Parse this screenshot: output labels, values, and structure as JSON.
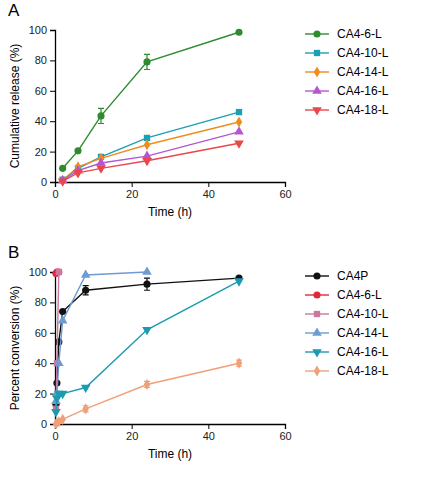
{
  "chart_data": [
    {
      "type": "line",
      "title": "A",
      "x_label": "Time (h)",
      "y_label": "Cumulative release (%)",
      "xlim": [
        0,
        60
      ],
      "xticks": [
        0,
        20,
        40,
        60
      ],
      "ylim": [
        0,
        100
      ],
      "yticks": [
        0,
        20,
        40,
        60,
        80,
        100
      ],
      "legend": "right",
      "x": [
        2,
        6,
        12,
        24,
        48
      ],
      "series": [
        {
          "name": "CA4-6-L",
          "color": "#2e8b2e",
          "marker": "circle",
          "values": [
            9,
            20.5,
            43.5,
            79,
            98.5
          ],
          "errors": [
            null,
            null,
            5,
            5,
            null
          ]
        },
        {
          "name": "CA4-10-L",
          "color": "#1aa0b4",
          "marker": "square",
          "values": [
            1.5,
            9,
            16.5,
            29,
            46
          ]
        },
        {
          "name": "CA4-14-L",
          "color": "#f08c1e",
          "marker": "diamond",
          "values": [
            1,
            10,
            15.5,
            24.5,
            39.5
          ]
        },
        {
          "name": "CA4-16-L",
          "color": "#b455d2",
          "marker": "triangle",
          "values": [
            1,
            7.5,
            12.5,
            17,
            33
          ]
        },
        {
          "name": "CA4-18-L",
          "color": "#e8474b",
          "marker": "triangle-down",
          "values": [
            0.5,
            6,
            9,
            14,
            25.5
          ]
        }
      ]
    },
    {
      "type": "line",
      "title": "B",
      "x_label": "Time (h)",
      "y_label": "Percent conversion (%)",
      "xlim": [
        0,
        60
      ],
      "xticks": [
        0,
        20,
        40,
        60
      ],
      "ylim": [
        0,
        100
      ],
      "yticks": [
        0,
        20,
        40,
        60,
        80,
        100
      ],
      "legend": "right",
      "series": [
        {
          "name": "CA4P",
          "color": "#111111",
          "marker": "circle",
          "x": [
            0.25,
            0.5,
            1,
            2,
            8,
            24,
            48
          ],
          "values": [
            13,
            27,
            54,
            74,
            88,
            92,
            96
          ],
          "errors": [
            null,
            null,
            null,
            null,
            3,
            4,
            null
          ]
        },
        {
          "name": "CA4-6-L",
          "color": "#e0283c",
          "marker": "circle",
          "x": [
            0.25,
            0.5,
            1
          ],
          "values": [
            99,
            100,
            100
          ]
        },
        {
          "name": "CA4-10-L",
          "color": "#c878a0",
          "marker": "square",
          "x": [
            0.25,
            0.5,
            1
          ],
          "values": [
            10,
            40,
            100
          ]
        },
        {
          "name": "CA4-14-L",
          "color": "#6e9bd2",
          "marker": "triangle",
          "x": [
            0.25,
            0.5,
            1,
            2,
            8,
            24
          ],
          "values": [
            15,
            20,
            40,
            68,
            98,
            100
          ]
        },
        {
          "name": "CA4-16-L",
          "color": "#1a9bb0",
          "marker": "triangle-down",
          "x": [
            0.25,
            0.5,
            1,
            2,
            8,
            24,
            48
          ],
          "values": [
            8,
            17,
            20,
            20,
            24,
            62,
            94
          ]
        },
        {
          "name": "CA4-18-L",
          "color": "#f0a078",
          "marker": "diamond",
          "x": [
            0.25,
            0.5,
            1,
            2,
            8,
            24,
            48
          ],
          "values": [
            0,
            1,
            1.5,
            3,
            10,
            26,
            40
          ],
          "errors": [
            null,
            null,
            null,
            null,
            2,
            2,
            2
          ]
        }
      ]
    }
  ]
}
